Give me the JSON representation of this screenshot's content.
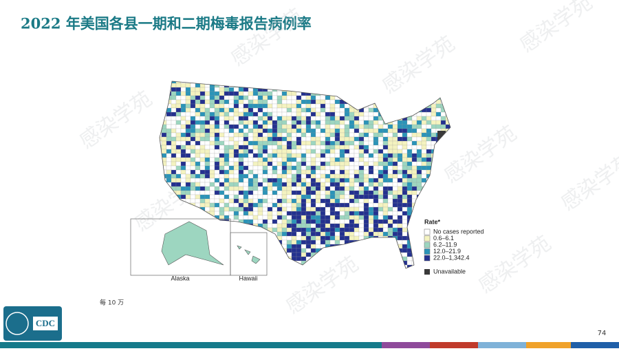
{
  "header": {
    "title": "2022 年美国各县一期和二期梅毒报告病例率"
  },
  "legend": {
    "title": "Rate*",
    "items": [
      {
        "label": "No cases reported",
        "color": "#ffffff"
      },
      {
        "label": "0.6–6.1",
        "color": "#f4f3c0"
      },
      {
        "label": "6.2–11.9",
        "color": "#9dd6c0"
      },
      {
        "label": "12.0–21.9",
        "color": "#2b94b8"
      },
      {
        "label": "22.0–1,342.4",
        "color": "#24318f"
      }
    ],
    "unavailable": {
      "label": "Unavailable",
      "color": "#3a3a3a"
    }
  },
  "insets": [
    "Alaska",
    "Hawaii"
  ],
  "footnote": "每 10 万",
  "logo": "CDC",
  "page_number": "74",
  "watermark": "感染学苑"
}
